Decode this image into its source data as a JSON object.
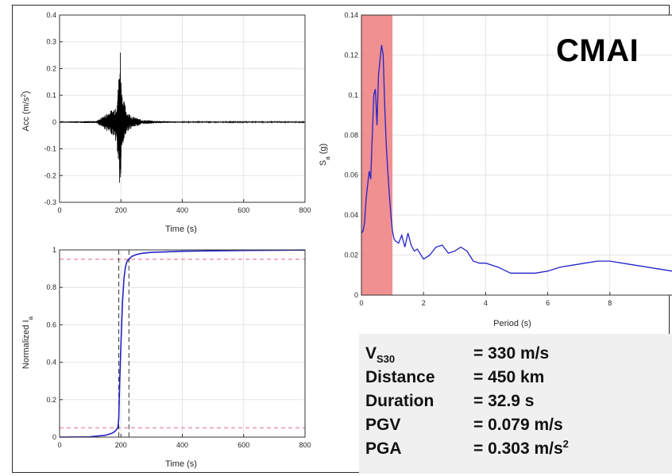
{
  "station": "CMAI",
  "stats": {
    "vs30_label_main": "V",
    "vs30_label_sub": "S30",
    "vs30_value": "= 330 m/s",
    "distance_label": "Distance",
    "distance_value": "= 450 km",
    "duration_label": "Duration",
    "duration_value": "= 32.9 s",
    "pgv_label": "PGV",
    "pgv_value": "= 0.079 m/s",
    "pga_label": "PGA",
    "pga_value_main": "= 0.303 m/s",
    "pga_value_sup": "2"
  },
  "colors": {
    "trace": "#000000",
    "series": "#2323c8",
    "threshold": "#e87a8a",
    "marker": "#303030",
    "shade": "#f08a8a",
    "grid": "#e4e4e4"
  },
  "chart_data": [
    {
      "type": "line",
      "xlabel": "Time (s)",
      "ylabel_main": "Acc (m/s",
      "ylabel_sup": "2",
      "ylabel_end": ")",
      "xlim": [
        0,
        800
      ],
      "ylim": [
        -0.3,
        0.4
      ],
      "xticks": [
        0,
        200,
        400,
        600,
        800
      ],
      "yticks": [
        -0.3,
        -0.2,
        -0.1,
        0,
        0.1,
        0.2,
        0.3,
        0.4
      ],
      "grid": true,
      "envelope": {
        "t": [
          0,
          120,
          140,
          160,
          175,
          185,
          192,
          196,
          198,
          200,
          202,
          205,
          210,
          220,
          240,
          270,
          320,
          400,
          800
        ],
        "max": [
          0.002,
          0.004,
          0.02,
          0.04,
          0.05,
          0.08,
          0.15,
          0.28,
          0.303,
          0.2,
          0.15,
          0.11,
          0.08,
          0.04,
          0.02,
          0.008,
          0.004,
          0.002,
          0.002
        ],
        "min": [
          -0.002,
          -0.004,
          -0.02,
          -0.04,
          -0.05,
          -0.08,
          -0.17,
          -0.26,
          -0.27,
          -0.22,
          -0.16,
          -0.11,
          -0.07,
          -0.035,
          -0.02,
          -0.008,
          -0.004,
          -0.002,
          -0.002
        ]
      }
    },
    {
      "type": "line",
      "xlabel": "Period (s)",
      "ylabel_main": "S",
      "ylabel_sub": "a",
      "ylabel_end": " (g)",
      "xlim": [
        0,
        10
      ],
      "ylim": [
        0,
        0.14
      ],
      "xticks": [
        0,
        2,
        4,
        6,
        8
      ],
      "yticks": [
        0,
        0.02,
        0.04,
        0.06,
        0.08,
        0.1,
        0.12,
        0.14
      ],
      "grid": true,
      "shaded_region": [
        0,
        1
      ],
      "x": [
        0,
        0.05,
        0.1,
        0.15,
        0.2,
        0.25,
        0.3,
        0.35,
        0.4,
        0.45,
        0.5,
        0.55,
        0.6,
        0.65,
        0.7,
        0.75,
        0.8,
        0.85,
        0.9,
        0.95,
        1.0,
        1.05,
        1.1,
        1.2,
        1.3,
        1.4,
        1.5,
        1.6,
        1.7,
        1.8,
        2.0,
        2.2,
        2.4,
        2.6,
        2.8,
        3.0,
        3.2,
        3.4,
        3.6,
        3.8,
        4.0,
        4.4,
        4.8,
        5.2,
        5.6,
        6.0,
        6.4,
        6.8,
        7.2,
        7.6,
        8.0,
        8.4,
        8.8,
        9.2,
        9.6,
        10.0
      ],
      "y": [
        0.031,
        0.032,
        0.036,
        0.048,
        0.055,
        0.062,
        0.058,
        0.08,
        0.1,
        0.103,
        0.085,
        0.11,
        0.118,
        0.125,
        0.12,
        0.095,
        0.075,
        0.062,
        0.05,
        0.04,
        0.032,
        0.028,
        0.027,
        0.026,
        0.03,
        0.024,
        0.031,
        0.025,
        0.022,
        0.023,
        0.018,
        0.02,
        0.024,
        0.025,
        0.021,
        0.022,
        0.024,
        0.022,
        0.017,
        0.016,
        0.016,
        0.014,
        0.011,
        0.011,
        0.011,
        0.012,
        0.014,
        0.015,
        0.016,
        0.017,
        0.017,
        0.016,
        0.015,
        0.014,
        0.013,
        0.012
      ]
    },
    {
      "type": "line",
      "xlabel": "Time (s)",
      "ylabel_main": "Normalized I",
      "ylabel_sub": "a",
      "xlim": [
        0,
        800
      ],
      "ylim": [
        0,
        1
      ],
      "xticks": [
        0,
        200,
        400,
        600,
        800
      ],
      "yticks": [
        0,
        0.2,
        0.4,
        0.6,
        0.8,
        1
      ],
      "grid": true,
      "thresholds": [
        0.05,
        0.95
      ],
      "markers": [
        193,
        226
      ],
      "x": [
        0,
        100,
        150,
        170,
        180,
        185,
        190,
        193,
        196,
        200,
        205,
        210,
        215,
        220,
        226,
        235,
        250,
        270,
        300,
        350,
        400,
        500,
        600,
        700,
        800
      ],
      "y": [
        0,
        0.002,
        0.01,
        0.02,
        0.03,
        0.04,
        0.05,
        0.1,
        0.3,
        0.5,
        0.72,
        0.85,
        0.91,
        0.94,
        0.95,
        0.965,
        0.975,
        0.982,
        0.987,
        0.99,
        0.993,
        0.995,
        0.997,
        0.998,
        0.999
      ]
    }
  ]
}
